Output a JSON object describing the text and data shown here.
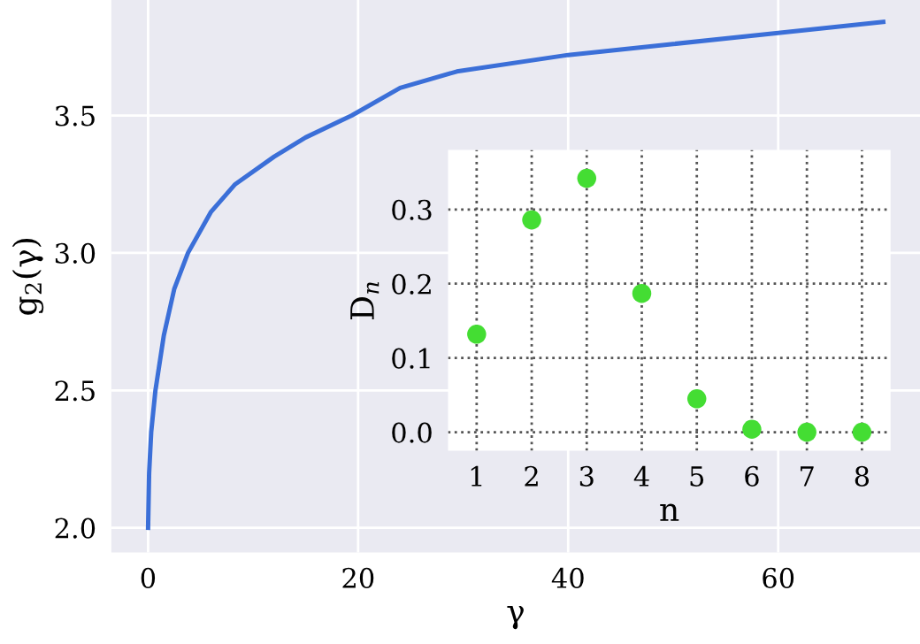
{
  "chart_data": [
    {
      "type": "line",
      "xlabel": "γ",
      "ylabel": "g$_{2}$(γ)",
      "x": [
        0,
        0.1,
        0.3,
        0.7,
        1.5,
        2.5,
        3.8,
        6,
        8.3,
        12,
        15,
        19.4,
        24,
        29.4,
        40,
        50,
        60,
        70
      ],
      "series": [
        {
          "color": "#3b6fd8",
          "values": [
            2.0,
            2.2,
            2.35,
            2.5,
            2.7,
            2.87,
            3.0,
            3.15,
            3.25,
            3.35,
            3.42,
            3.5,
            3.6,
            3.66,
            3.72,
            3.76,
            3.8,
            3.84
          ]
        }
      ],
      "xlim": [
        -3.5,
        73.5
      ],
      "ylim": [
        1.91,
        3.92
      ],
      "xticks": [
        0,
        20,
        40,
        60
      ],
      "yticks": [
        {
          "value": 2,
          "label": "2.0"
        },
        2.5,
        {
          "value": 3,
          "label": "3.0"
        },
        3.5
      ],
      "grid": true,
      "line_style": "solid",
      "marker": "none"
    },
    {
      "type": "scatter",
      "xlabel": "n",
      "ylabel": "D$_{n}$",
      "x": [
        1,
        2,
        3,
        4,
        5,
        6,
        7,
        8
      ],
      "series": [
        {
          "color": "#44dd33",
          "values": [
            0.132,
            0.286,
            0.342,
            0.187,
            0.045,
            0.004,
            0.0,
            0.0
          ]
        }
      ],
      "xlim": [
        0.48,
        8.52
      ],
      "ylim": [
        -0.025,
        0.38
      ],
      "xticks": [
        1,
        2,
        3,
        4,
        5,
        6,
        7,
        8
      ],
      "yticks": [
        {
          "value": 0,
          "label": "0.0"
        },
        0.1,
        0.2,
        0.3
      ],
      "grid": true,
      "marker": "circle"
    }
  ]
}
